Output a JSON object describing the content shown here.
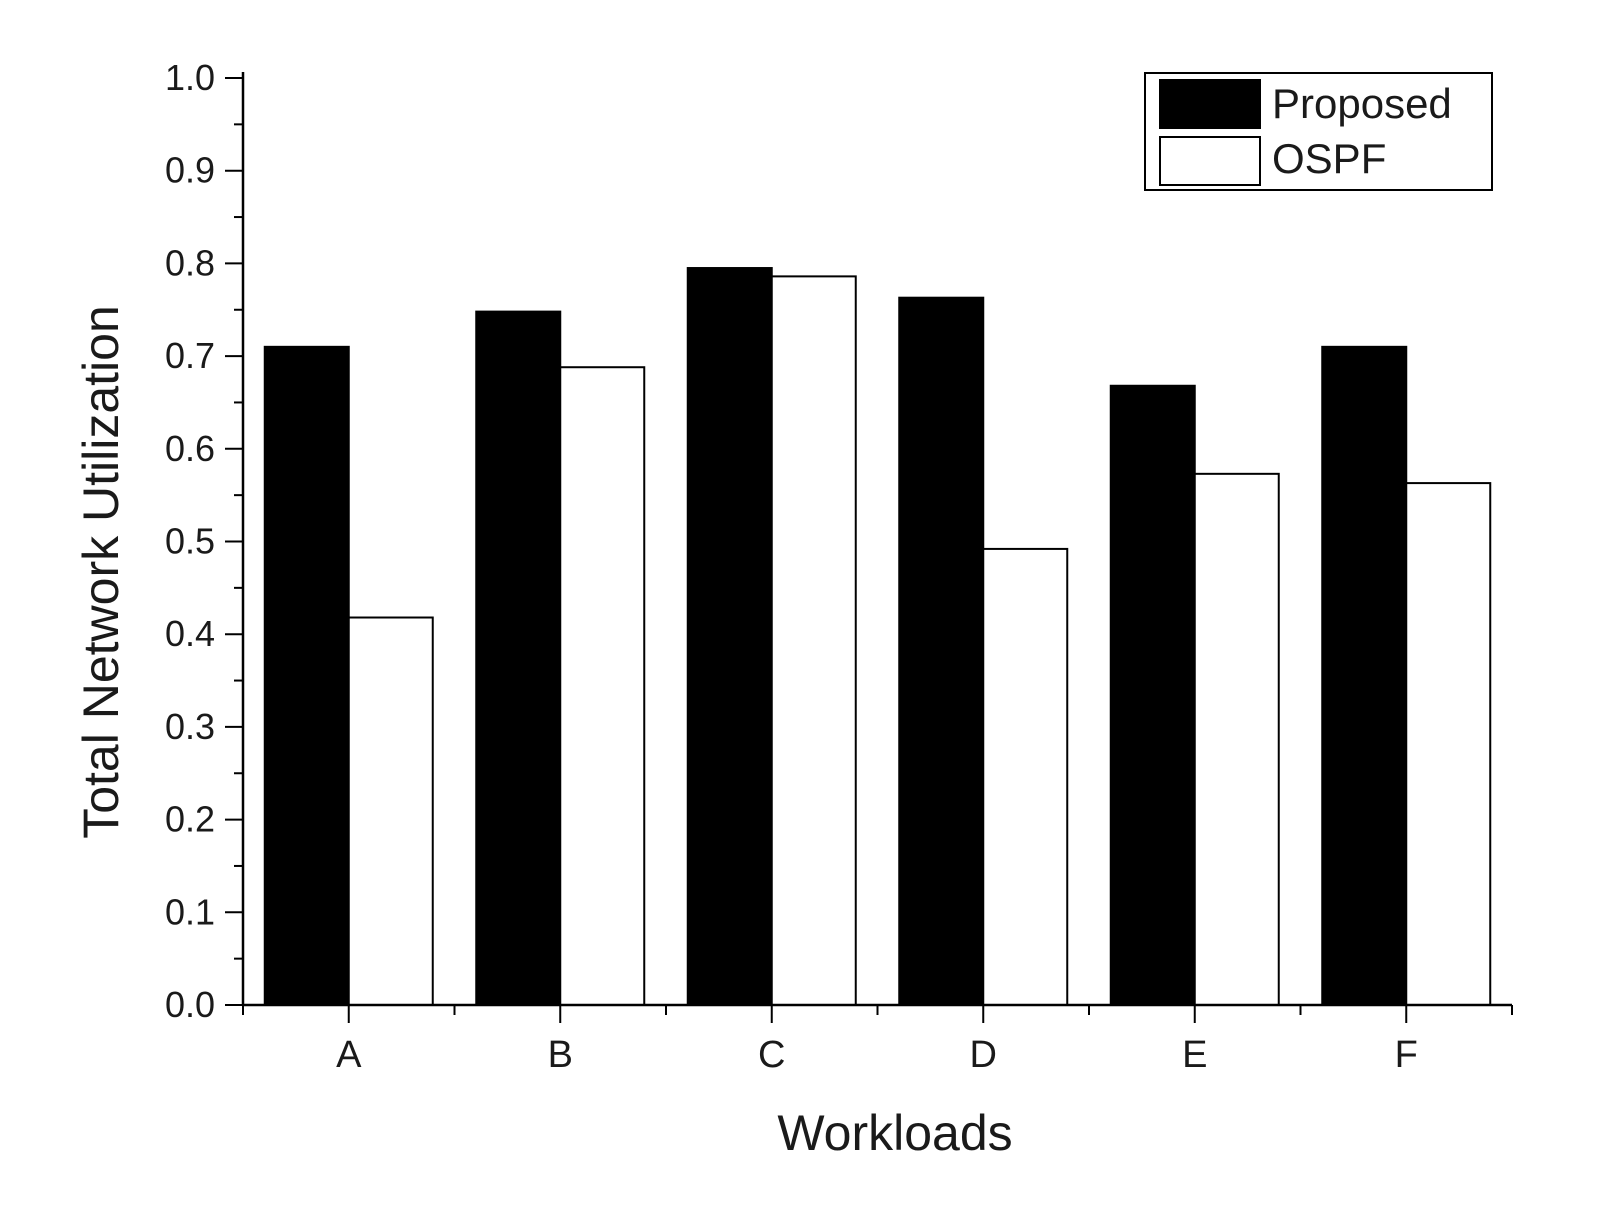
{
  "chart_data": {
    "type": "bar",
    "title": "",
    "xlabel": "Workloads",
    "ylabel": "Total Network Utilization",
    "categories": [
      "A",
      "B",
      "C",
      "D",
      "E",
      "F"
    ],
    "ylim": [
      0.0,
      1.0
    ],
    "yticks": [
      "0.0",
      "0.1",
      "0.2",
      "0.3",
      "0.4",
      "0.5",
      "0.6",
      "0.7",
      "0.8",
      "0.9",
      "1.0"
    ],
    "series": [
      {
        "name": "Proposed",
        "color": "#000000",
        "values": [
          0.71,
          0.748,
          0.795,
          0.763,
          0.668,
          0.71
        ]
      },
      {
        "name": "OSPF",
        "color": "#ffffff",
        "values": [
          0.418,
          0.688,
          0.786,
          0.492,
          0.573,
          0.563
        ]
      }
    ],
    "legend": {
      "position": "top-right"
    },
    "grid": false
  }
}
